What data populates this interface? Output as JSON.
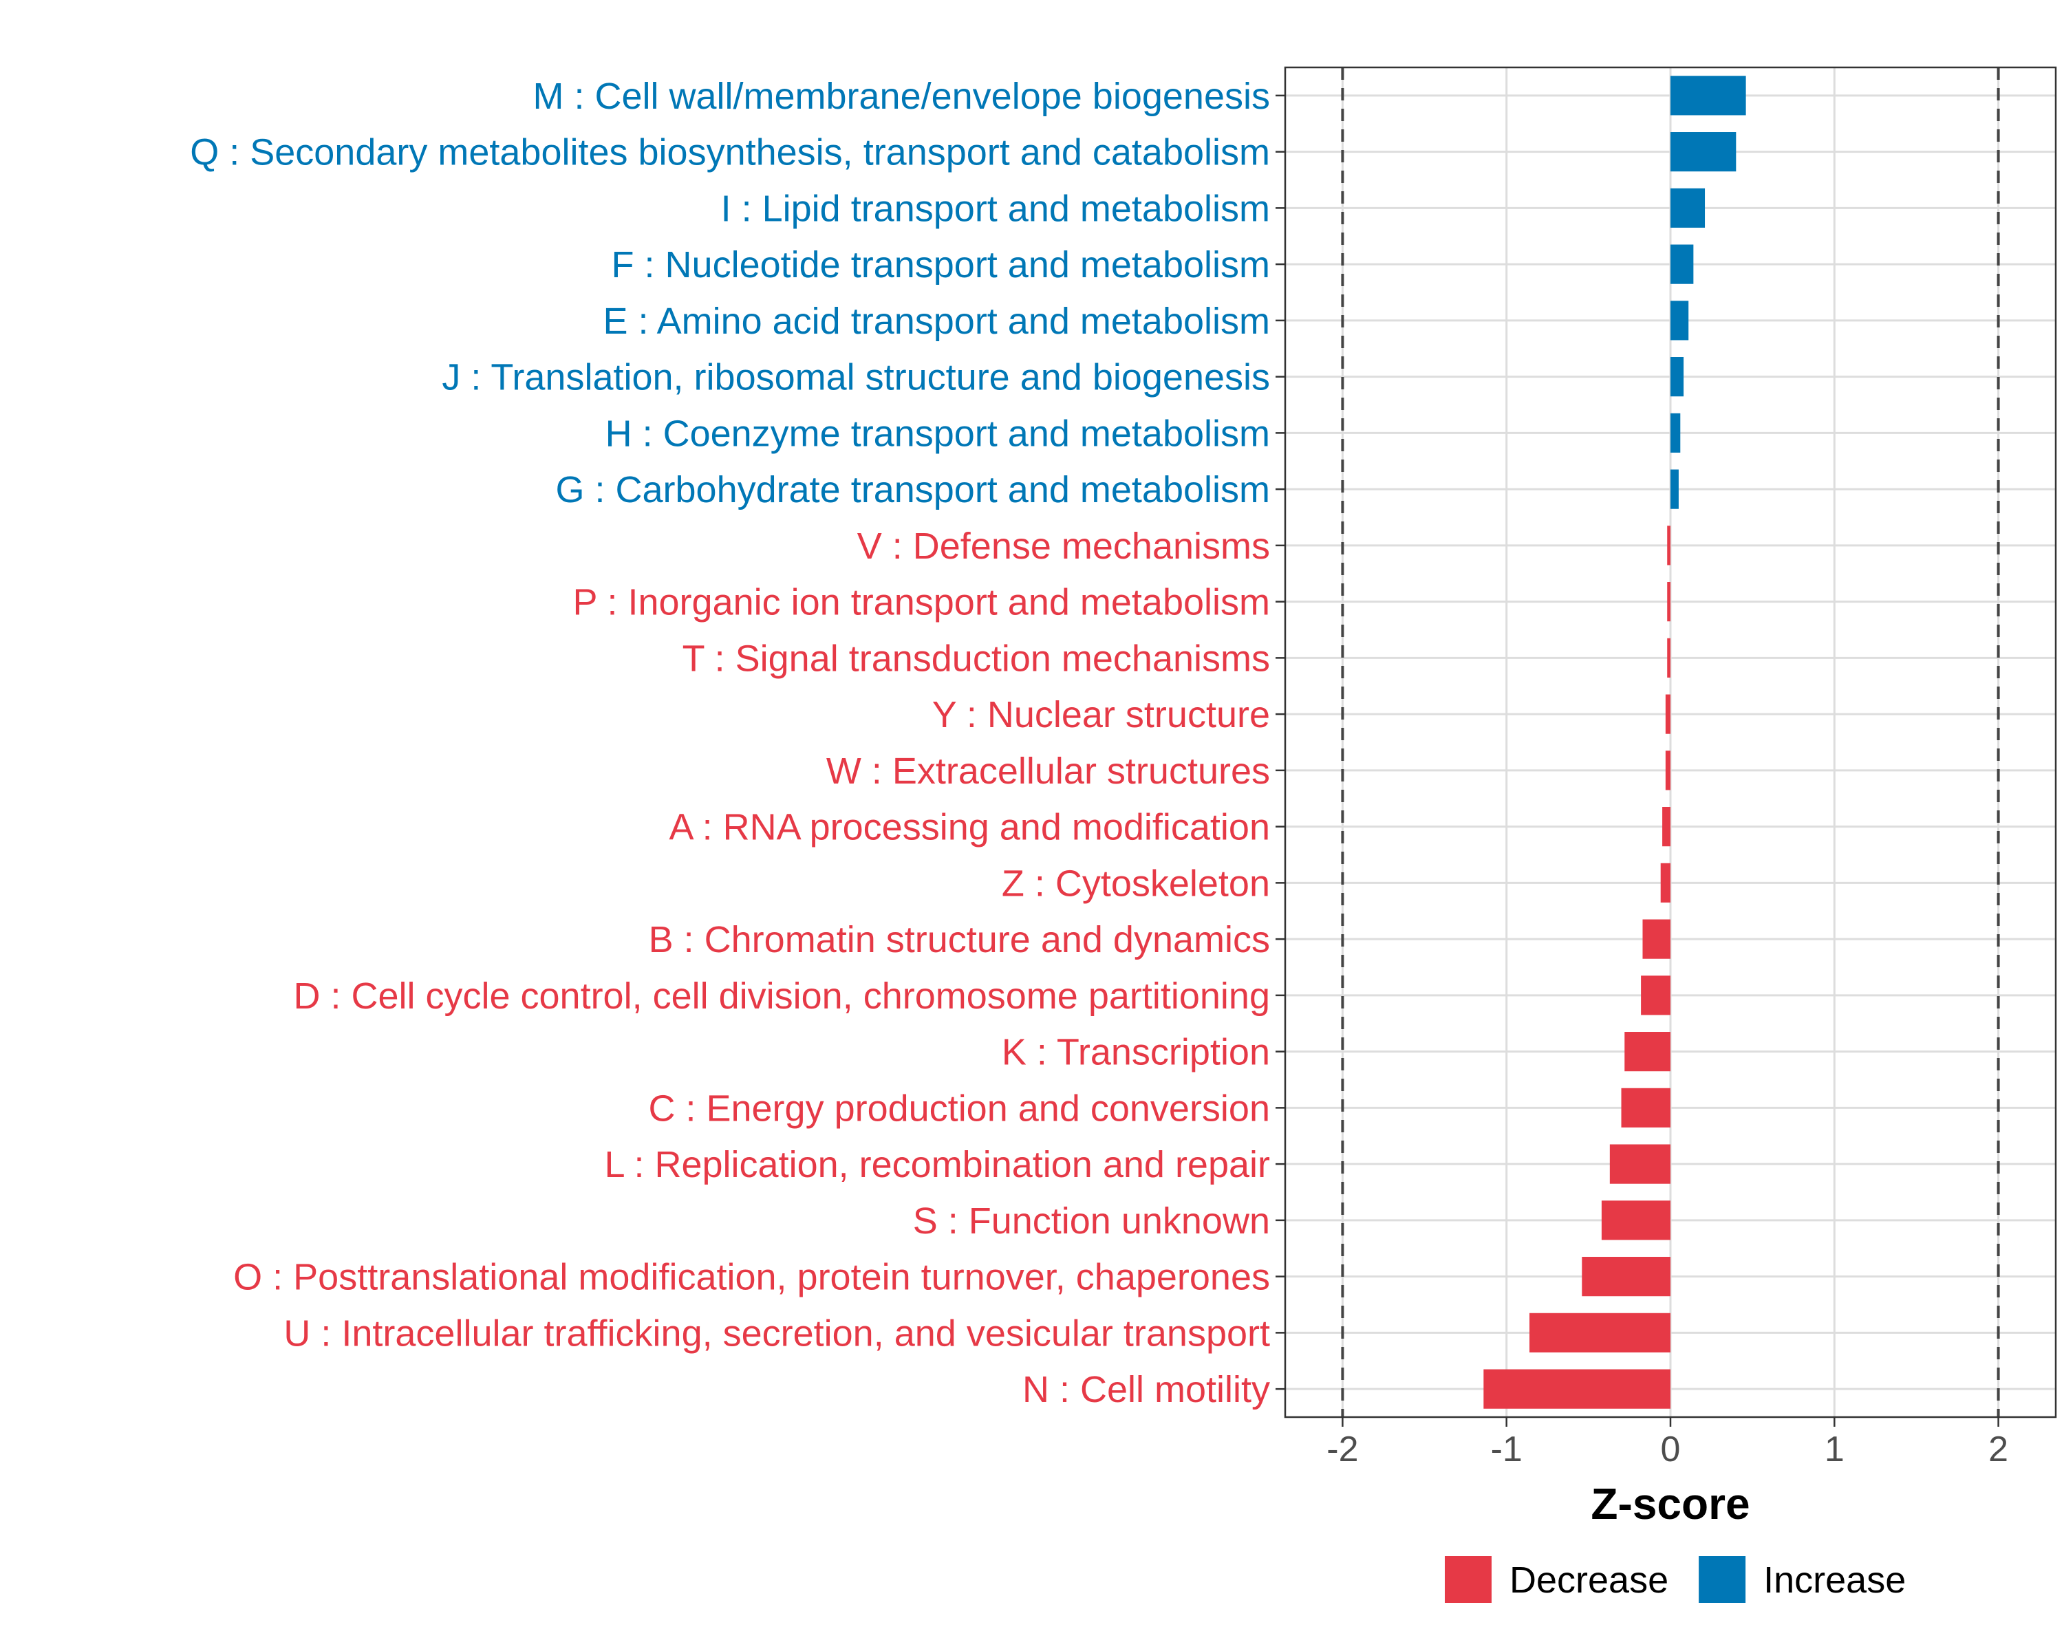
{
  "chart_data": {
    "type": "bar",
    "orientation": "horizontal",
    "xlabel": "Z-score",
    "ylabel": "",
    "xlim": [
      -2.35,
      2.35
    ],
    "xticks": [
      -2,
      -1,
      0,
      1,
      2
    ],
    "xtick_labels": [
      "-2",
      "-1",
      "0",
      "1",
      "2"
    ],
    "reference_lines": [
      -2,
      2
    ],
    "grid": true,
    "legend_position": "bottom",
    "colors": {
      "Decrease": "#E63946",
      "Increase": "#0077B6"
    },
    "categories": [
      "M : Cell wall/membrane/envelope biogenesis",
      "Q : Secondary metabolites biosynthesis, transport and catabolism",
      "I : Lipid transport and metabolism",
      "F : Nucleotide transport and metabolism",
      "E : Amino acid transport and metabolism",
      "J : Translation, ribosomal structure and biogenesis",
      "H : Coenzyme transport and metabolism",
      "G : Carbohydrate transport and metabolism",
      "V : Defense mechanisms",
      "P : Inorganic ion transport and metabolism",
      "T : Signal transduction mechanisms",
      "Y : Nuclear structure",
      "W : Extracellular structures",
      "A : RNA processing and modification",
      "Z : Cytoskeleton",
      "B : Chromatin structure and dynamics",
      "D : Cell cycle control, cell division, chromosome partitioning",
      "K : Transcription",
      "C : Energy production and conversion",
      "L : Replication, recombination and repair",
      "S : Function unknown",
      "O : Posttranslational modification, protein turnover, chaperones",
      "U : Intracellular trafficking, secretion, and vesicular transport",
      "N : Cell motility"
    ],
    "values": [
      0.46,
      0.4,
      0.21,
      0.14,
      0.11,
      0.08,
      0.06,
      0.05,
      -0.02,
      -0.02,
      -0.02,
      -0.03,
      -0.03,
      -0.05,
      -0.06,
      -0.17,
      -0.18,
      -0.28,
      -0.3,
      -0.37,
      -0.42,
      -0.54,
      -0.86,
      -1.14
    ],
    "groups": [
      "Increase",
      "Increase",
      "Increase",
      "Increase",
      "Increase",
      "Increase",
      "Increase",
      "Increase",
      "Decrease",
      "Decrease",
      "Decrease",
      "Decrease",
      "Decrease",
      "Decrease",
      "Decrease",
      "Decrease",
      "Decrease",
      "Decrease",
      "Decrease",
      "Decrease",
      "Decrease",
      "Decrease",
      "Decrease",
      "Decrease"
    ],
    "legend": [
      {
        "label": "Decrease"
      },
      {
        "label": "Increase"
      }
    ]
  }
}
